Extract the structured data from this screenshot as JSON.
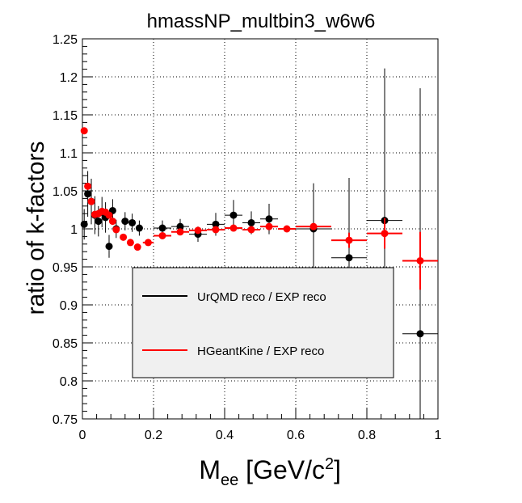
{
  "chart_data": {
    "type": "scatter",
    "title": "hmassNP_multbin3_w6w6",
    "xlabel_main": "M",
    "xlabel_sub": "ee",
    "xlabel_rest": " [GeV/c",
    "xlabel_sup": "2",
    "xlabel_close": "]",
    "ylabel": "ratio of k-factors",
    "xlim": [
      0,
      1
    ],
    "ylim": [
      0.75,
      1.25
    ],
    "x_ticks": [
      "0",
      "0.2",
      "0.4",
      "0.6",
      "0.8",
      "1"
    ],
    "y_ticks": [
      "0.75",
      "0.8",
      "0.85",
      "0.9",
      "0.95",
      "1",
      "1.05",
      "1.1",
      "1.15",
      "1.2",
      "1.25"
    ],
    "grid": true,
    "legend_position": "center",
    "series": [
      {
        "name": "UrQMD reco / EXP reco",
        "color": "#000000",
        "points": [
          {
            "x": 0.005,
            "y": 1.006,
            "xerr": 0.005,
            "yerr": 0.02
          },
          {
            "x": 0.015,
            "y": 1.046,
            "xerr": 0.005,
            "yerr": 0.03
          },
          {
            "x": 0.025,
            "y": 1.036,
            "xerr": 0.005,
            "yerr": 0.03
          },
          {
            "x": 0.035,
            "y": 1.018,
            "xerr": 0.005,
            "yerr": 0.025
          },
          {
            "x": 0.045,
            "y": 1.01,
            "xerr": 0.005,
            "yerr": 0.02
          },
          {
            "x": 0.055,
            "y": 1.022,
            "xerr": 0.005,
            "yerr": 0.02
          },
          {
            "x": 0.065,
            "y": 1.015,
            "xerr": 0.005,
            "yerr": 0.02
          },
          {
            "x": 0.075,
            "y": 0.977,
            "xerr": 0.005,
            "yerr": 0.015
          },
          {
            "x": 0.085,
            "y": 1.024,
            "xerr": 0.005,
            "yerr": 0.015
          },
          {
            "x": 0.095,
            "y": 1.0,
            "xerr": 0.005,
            "yerr": 0.012
          },
          {
            "x": 0.12,
            "y": 1.01,
            "xerr": 0.01,
            "yerr": 0.012
          },
          {
            "x": 0.14,
            "y": 1.008,
            "xerr": 0.01,
            "yerr": 0.012
          },
          {
            "x": 0.16,
            "y": 1.001,
            "xerr": 0.01,
            "yerr": 0.01
          },
          {
            "x": 0.225,
            "y": 1.001,
            "xerr": 0.025,
            "yerr": 0.01
          },
          {
            "x": 0.275,
            "y": 1.003,
            "xerr": 0.025,
            "yerr": 0.01
          },
          {
            "x": 0.325,
            "y": 0.993,
            "xerr": 0.025,
            "yerr": 0.01
          },
          {
            "x": 0.375,
            "y": 1.006,
            "xerr": 0.025,
            "yerr": 0.015
          },
          {
            "x": 0.425,
            "y": 1.018,
            "xerr": 0.025,
            "yerr": 0.02
          },
          {
            "x": 0.475,
            "y": 1.008,
            "xerr": 0.025,
            "yerr": 0.015
          },
          {
            "x": 0.525,
            "y": 1.013,
            "xerr": 0.025,
            "yerr": 0.02
          },
          {
            "x": 0.65,
            "y": 1.0,
            "xerr": 0.05,
            "yerr": 0.06
          },
          {
            "x": 0.75,
            "y": 0.962,
            "xerr": 0.05,
            "yerr": 0.105
          },
          {
            "x": 0.85,
            "y": 1.011,
            "xerr": 0.05,
            "yerr": 0.2
          },
          {
            "x": 0.95,
            "y": 0.862,
            "xerr": 0.05,
            "yerr": 0.323
          }
        ]
      },
      {
        "name": "HGeantKine / EXP reco",
        "color": "#ff0000",
        "points": [
          {
            "x": 0.005,
            "y": 1.129,
            "xerr": 0.005,
            "yerr": 0.003
          },
          {
            "x": 0.015,
            "y": 1.056,
            "xerr": 0.005,
            "yerr": 0.003
          },
          {
            "x": 0.025,
            "y": 1.036,
            "xerr": 0.005,
            "yerr": 0.003
          },
          {
            "x": 0.035,
            "y": 1.019,
            "xerr": 0.005,
            "yerr": 0.003
          },
          {
            "x": 0.045,
            "y": 1.02,
            "xerr": 0.005,
            "yerr": 0.003
          },
          {
            "x": 0.055,
            "y": 1.023,
            "xerr": 0.005,
            "yerr": 0.003
          },
          {
            "x": 0.065,
            "y": 1.022,
            "xerr": 0.005,
            "yerr": 0.003
          },
          {
            "x": 0.075,
            "y": 1.018,
            "xerr": 0.005,
            "yerr": 0.003
          },
          {
            "x": 0.085,
            "y": 1.01,
            "xerr": 0.005,
            "yerr": 0.003
          },
          {
            "x": 0.095,
            "y": 0.999,
            "xerr": 0.005,
            "yerr": 0.003
          },
          {
            "x": 0.115,
            "y": 0.989,
            "xerr": 0.005,
            "yerr": 0.003
          },
          {
            "x": 0.135,
            "y": 0.982,
            "xerr": 0.005,
            "yerr": 0.003
          },
          {
            "x": 0.155,
            "y": 0.976,
            "xerr": 0.005,
            "yerr": 0.003
          },
          {
            "x": 0.185,
            "y": 0.982,
            "xerr": 0.015,
            "yerr": 0.003
          },
          {
            "x": 0.225,
            "y": 0.991,
            "xerr": 0.025,
            "yerr": 0.003
          },
          {
            "x": 0.275,
            "y": 0.996,
            "xerr": 0.025,
            "yerr": 0.003
          },
          {
            "x": 0.325,
            "y": 0.998,
            "xerr": 0.025,
            "yerr": 0.003
          },
          {
            "x": 0.375,
            "y": 0.999,
            "xerr": 0.025,
            "yerr": 0.003
          },
          {
            "x": 0.425,
            "y": 1.001,
            "xerr": 0.025,
            "yerr": 0.003
          },
          {
            "x": 0.475,
            "y": 0.999,
            "xerr": 0.025,
            "yerr": 0.003
          },
          {
            "x": 0.525,
            "y": 1.003,
            "xerr": 0.025,
            "yerr": 0.003
          },
          {
            "x": 0.575,
            "y": 1.0,
            "xerr": 0.025,
            "yerr": 0.003
          },
          {
            "x": 0.65,
            "y": 1.003,
            "xerr": 0.05,
            "yerr": 0.003
          },
          {
            "x": 0.75,
            "y": 0.985,
            "xerr": 0.05,
            "yerr": 0.01
          },
          {
            "x": 0.85,
            "y": 0.994,
            "xerr": 0.05,
            "yerr": 0.02
          },
          {
            "x": 0.95,
            "y": 0.958,
            "xerr": 0.05,
            "yerr": 0.038
          }
        ]
      }
    ]
  }
}
